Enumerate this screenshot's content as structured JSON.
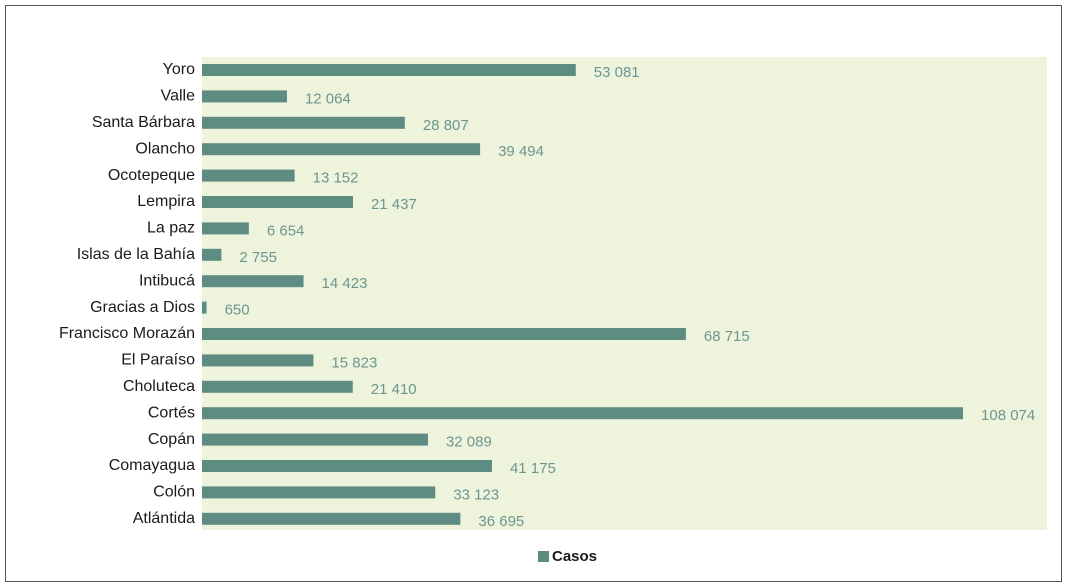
{
  "chart_data": {
    "type": "hbar",
    "categories": [
      "Yoro",
      "Valle",
      "Santa Bárbara",
      "Olancho",
      "Ocotepeque",
      "Lempira",
      "La paz",
      "Islas de la Bahía",
      "Intibucá",
      "Gracias a Dios",
      "Francisco Morazán",
      "El Paraíso",
      "Choluteca",
      "Cortés",
      "Copán",
      "Comayagua",
      "Colón",
      "Atlántida"
    ],
    "series": [
      {
        "name": "Casos",
        "color": "#5e8c83",
        "values": [
          53081,
          12064,
          28807,
          39494,
          13152,
          21437,
          6654,
          2755,
          14423,
          650,
          68715,
          15823,
          21410,
          108074,
          32089,
          41175,
          33123,
          36695
        ],
        "value_labels": [
          "53 081",
          "12 064",
          "28 807",
          "39 494",
          "13 152",
          "21 437",
          "6 654",
          "2 755",
          "14 423",
          "650",
          "68 715",
          "15 823",
          "21 410",
          "108 074",
          "32 089",
          "41 175",
          "33 123",
          "36 695"
        ]
      }
    ],
    "xlim": [
      0,
      120000
    ],
    "legend": "bottom"
  }
}
